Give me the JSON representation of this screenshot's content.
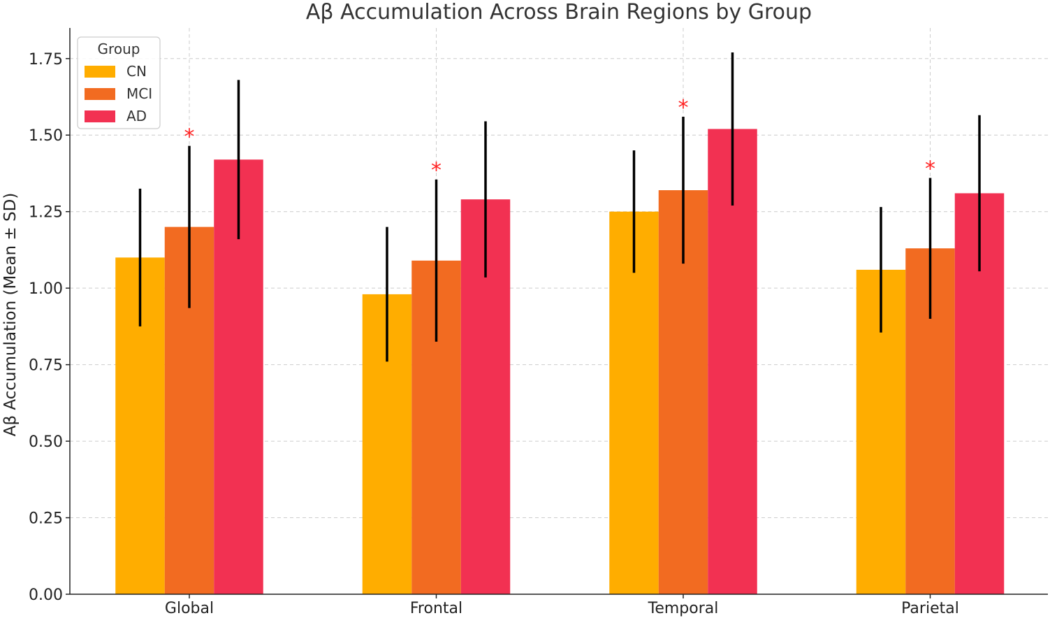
{
  "chart_data": {
    "type": "bar",
    "title": "Aβ Accumulation Across Brain Regions by Group",
    "xlabel": "",
    "ylabel": "Aβ Accumulation (Mean ± SD)",
    "ylim": [
      0,
      1.85
    ],
    "yticks": [
      0.0,
      0.25,
      0.5,
      0.75,
      1.0,
      1.25,
      1.5,
      1.75
    ],
    "ytick_labels": [
      "0.00",
      "0.25",
      "0.50",
      "0.75",
      "1.00",
      "1.25",
      "1.50",
      "1.75"
    ],
    "categories": [
      "Global",
      "Frontal",
      "Temporal",
      "Parietal"
    ],
    "grid": true,
    "legend": {
      "title": "Group",
      "placement": "top-left"
    },
    "series": [
      {
        "name": "CN",
        "color": "#ffad00",
        "values": [
          1.1,
          0.98,
          1.25,
          1.06
        ],
        "sd": [
          0.225,
          0.22,
          0.2,
          0.205
        ]
      },
      {
        "name": "MCI",
        "color": "#f26b21",
        "values": [
          1.2,
          1.09,
          1.32,
          1.13
        ],
        "sd": [
          0.265,
          0.265,
          0.24,
          0.23
        ]
      },
      {
        "name": "AD",
        "color": "#f23152",
        "values": [
          1.42,
          1.29,
          1.52,
          1.31
        ],
        "sd": [
          0.26,
          0.255,
          0.25,
          0.255
        ]
      }
    ],
    "annotations": [
      {
        "text": "*",
        "category": "Global",
        "series": "MCI"
      },
      {
        "text": "*",
        "category": "Frontal",
        "series": "MCI"
      },
      {
        "text": "*",
        "category": "Temporal",
        "series": "MCI"
      },
      {
        "text": "*",
        "category": "Parietal",
        "series": "MCI"
      }
    ]
  }
}
